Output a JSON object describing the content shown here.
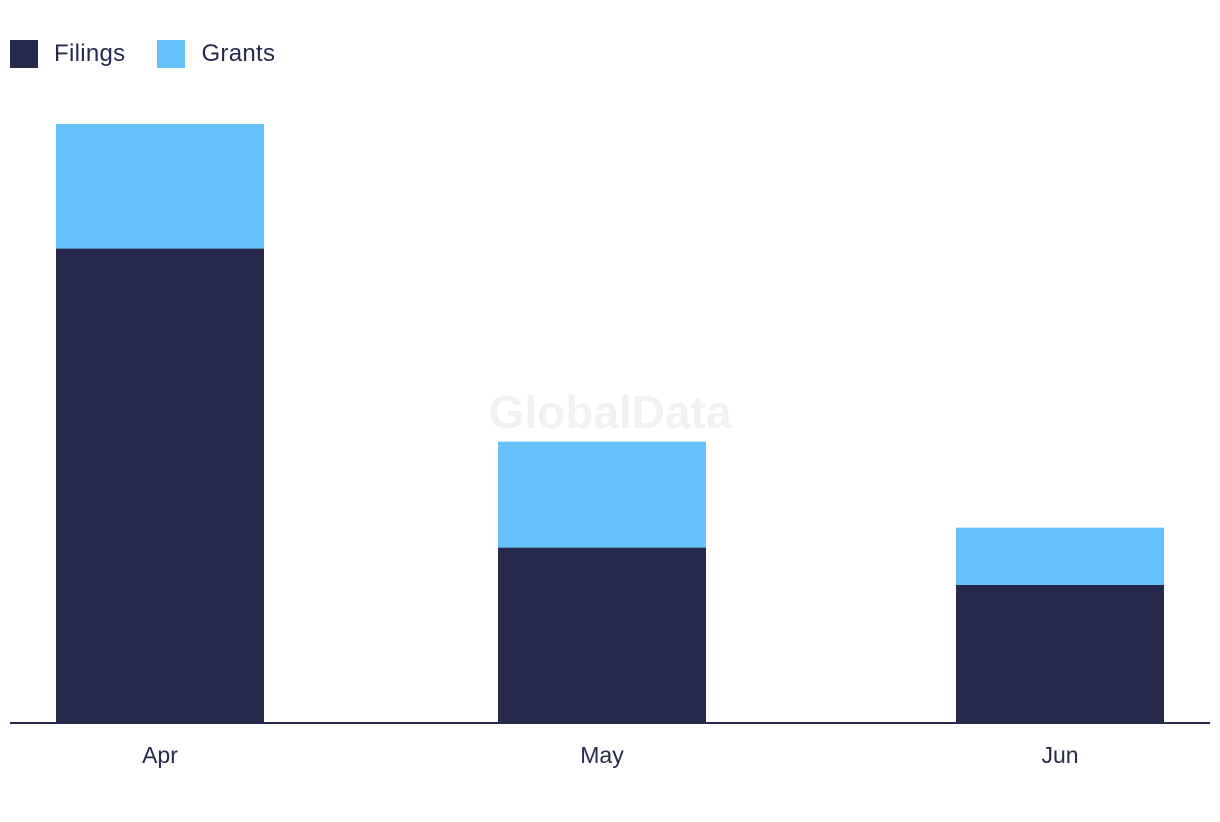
{
  "chart_data": {
    "type": "bar",
    "stacked": true,
    "categories": [
      "Apr",
      "May",
      "Jun"
    ],
    "series": [
      {
        "name": "Filings",
        "values": [
          38,
          14,
          11
        ],
        "color": "#27294c"
      },
      {
        "name": "Grants",
        "values": [
          10,
          8.5,
          4.6
        ],
        "color": "#64c1f9"
      }
    ],
    "ylim": [
      0,
      48
    ],
    "grid": false,
    "legend_position": "top-left"
  },
  "watermark": "GlobalData"
}
